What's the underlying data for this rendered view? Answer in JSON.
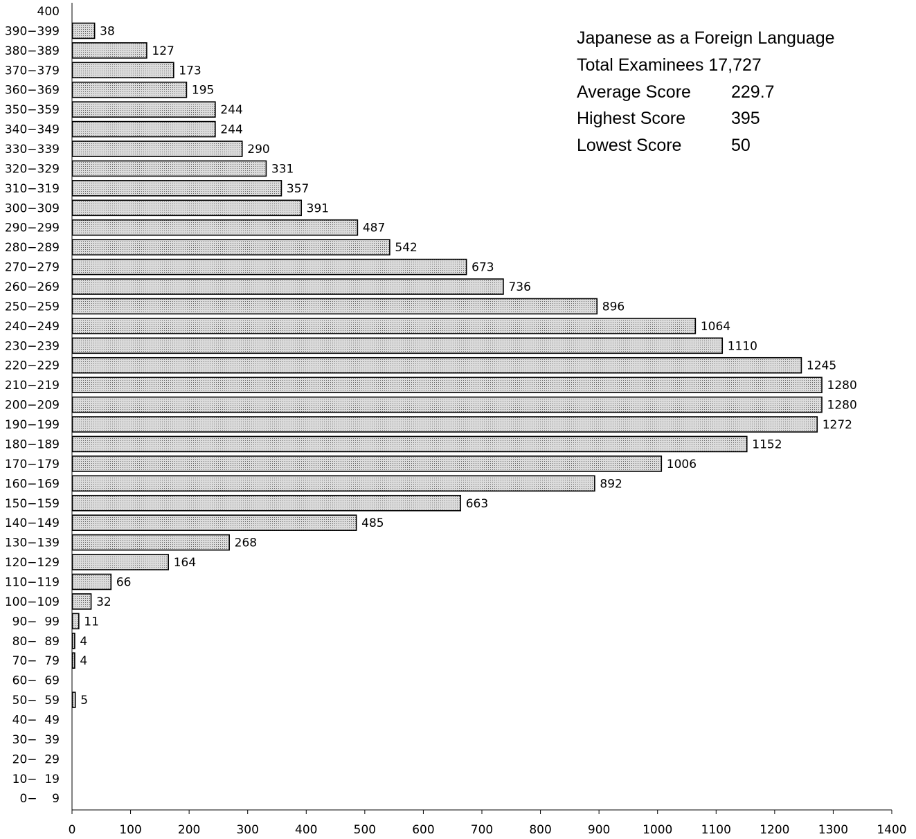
{
  "info_box": {
    "title": "Japanese as a Foreign Language",
    "total_line": "Total Examinees 17,727",
    "rows": [
      {
        "label": "Average Score",
        "value": "229.7"
      },
      {
        "label": "Highest Score",
        "value": "395"
      },
      {
        "label": "Lowest Score",
        "value": "50"
      }
    ]
  },
  "chart_data": {
    "type": "bar",
    "orientation": "horizontal",
    "categories": [
      "400",
      "390−399",
      "380−389",
      "370−379",
      "360−369",
      "350−359",
      "340−349",
      "330−339",
      "320−329",
      "310−319",
      "300−309",
      "290−299",
      "280−289",
      "270−279",
      "260−269",
      "250−259",
      "240−249",
      "230−239",
      "220−229",
      "210−219",
      "200−209",
      "190−199",
      "180−189",
      "170−179",
      "160−169",
      "150−159",
      "140−149",
      "130−139",
      "120−129",
      "110−119",
      "100−109",
      "90−  99",
      "80−  89",
      "70−  79",
      "60−  69",
      "50−  59",
      "40−  49",
      "30−  39",
      "20−  29",
      "10−  19",
      "0−    9"
    ],
    "values": [
      null,
      38,
      127,
      173,
      195,
      244,
      244,
      290,
      331,
      357,
      391,
      487,
      542,
      673,
      736,
      896,
      1064,
      1110,
      1245,
      1280,
      1280,
      1272,
      1152,
      1006,
      892,
      663,
      485,
      268,
      164,
      66,
      32,
      11,
      4,
      4,
      null,
      5,
      null,
      null,
      null,
      null,
      null
    ],
    "xlim": [
      0,
      1400
    ],
    "xticks": [
      "0",
      "100",
      "200",
      "300",
      "400",
      "500",
      "600",
      "700",
      "800",
      "900",
      "1000",
      "1100",
      "1200",
      "1300",
      "1400"
    ],
    "grid": false,
    "colors": {
      "bar_fill": "#d9d9d9",
      "bar_dots": "#555555",
      "bar_stroke": "#000000"
    }
  }
}
